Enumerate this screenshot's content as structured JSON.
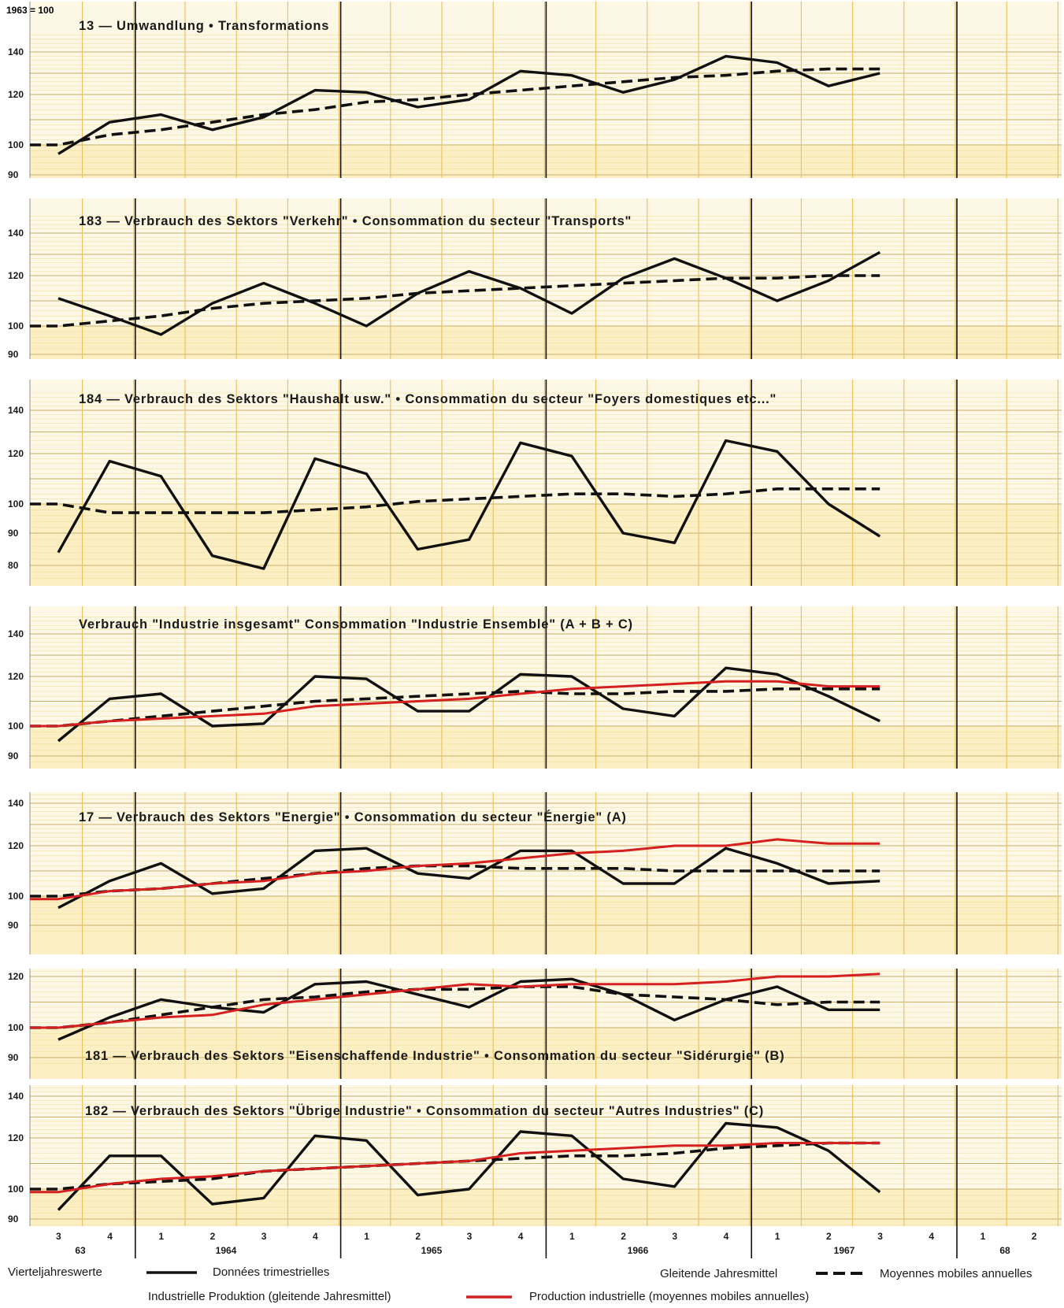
{
  "header": {
    "base_label": "1963 = 100"
  },
  "colors": {
    "background": "#fdf7e6",
    "grid_minor": "#efe2a0",
    "grid_major": "#c8b26a",
    "quarterly": "#111111",
    "moving_avg": "#111111",
    "production": "#d42020"
  },
  "chart_data": [
    {
      "type": "line",
      "title": "13 — Umwandlung • Transformations",
      "y_ticks": [
        90,
        100,
        120,
        140
      ],
      "ylim": [
        88,
        148
      ],
      "series": [
        {
          "name": "Données trimestrielles",
          "style": "solid",
          "values": [
            97,
            109,
            112,
            106,
            111,
            122,
            121,
            115,
            118,
            131,
            129,
            121,
            127,
            138,
            135,
            124,
            130
          ]
        },
        {
          "name": "Moyennes mobiles annuelles",
          "style": "dashed",
          "values": [
            100,
            104,
            106,
            109,
            112,
            114,
            117,
            118,
            120,
            122,
            124,
            126,
            128,
            129,
            131,
            132,
            132
          ]
        }
      ]
    },
    {
      "type": "line",
      "title": "183 — Verbrauch des Sektors \"Verkehr\" • Consommation du secteur \"Transports\"",
      "y_ticks": [
        90,
        100,
        120,
        140
      ],
      "ylim": [
        88,
        148
      ],
      "series": [
        {
          "name": "Données trimestrielles",
          "style": "solid",
          "values": [
            111,
            104,
            97,
            109,
            117,
            109,
            100,
            113,
            122,
            115,
            105,
            119,
            128,
            119,
            110,
            118,
            131
          ]
        },
        {
          "name": "Moyennes mobiles annuelles",
          "style": "dashed",
          "values": [
            100,
            102,
            104,
            107,
            109,
            110,
            111,
            113,
            114,
            115,
            116,
            117,
            118,
            119,
            119,
            120,
            120
          ]
        }
      ]
    },
    {
      "type": "line",
      "title": "184 — Verbrauch des Sektors \"Haushalt usw.\" • Consommation du secteur \"Foyers domestiques etc...\"",
      "y_ticks": [
        80,
        90,
        100,
        120,
        140
      ],
      "ylim": [
        75,
        148
      ],
      "series": [
        {
          "name": "Données trimestrielles",
          "style": "solid",
          "values": [
            84,
            117,
            111,
            83,
            79,
            118,
            112,
            85,
            88,
            125,
            119,
            90,
            87,
            126,
            121,
            100,
            89
          ]
        },
        {
          "name": "Moyennes mobiles annuelles",
          "style": "dashed",
          "values": [
            100,
            97,
            97,
            97,
            97,
            98,
            99,
            101,
            102,
            103,
            104,
            104,
            103,
            104,
            106,
            106,
            106
          ]
        }
      ]
    },
    {
      "type": "line",
      "title": "Verbrauch \"Industrie insgesamt\" Consommation \"Industrie Ensemble\" (A + B + C)",
      "y_ticks": [
        90,
        100,
        120,
        140
      ],
      "ylim": [
        88,
        148
      ],
      "series": [
        {
          "name": "Données trimestrielles",
          "style": "solid",
          "values": [
            95,
            111,
            113,
            100,
            101,
            120,
            119,
            106,
            106,
            121,
            120,
            107,
            104,
            124,
            121,
            112,
            102
          ]
        },
        {
          "name": "Moyennes mobiles annuelles",
          "style": "dashed",
          "values": [
            100,
            102,
            104,
            106,
            108,
            110,
            111,
            112,
            113,
            114,
            113,
            113,
            114,
            114,
            115,
            115,
            115
          ]
        },
        {
          "name": "Production industrielle (moyennes mobiles annuelles)",
          "style": "solid-red",
          "values": [
            100,
            102,
            103,
            104,
            105,
            108,
            109,
            110,
            111,
            113,
            115,
            116,
            117,
            118,
            118,
            116,
            116
          ]
        }
      ]
    },
    {
      "type": "line",
      "title": "17 — Verbrauch des Sektors \"Energie\" • Consommation du secteur \"Énergie\" (A)",
      "y_ticks": [
        90,
        100,
        120,
        140
      ],
      "ylim": [
        88,
        148
      ],
      "series": [
        {
          "name": "Données trimestrielles",
          "style": "solid",
          "values": [
            96,
            106,
            113,
            101,
            103,
            118,
            119,
            109,
            107,
            118,
            118,
            105,
            105,
            119,
            113,
            105,
            106
          ]
        },
        {
          "name": "Moyennes mobiles annuelles",
          "style": "dashed",
          "values": [
            100,
            102,
            103,
            105,
            107,
            109,
            111,
            112,
            112,
            111,
            111,
            111,
            110,
            110,
            110,
            110,
            110
          ]
        },
        {
          "name": "Production industrielle (moyennes mobiles annuelles)",
          "style": "solid-red",
          "values": [
            99,
            102,
            103,
            105,
            106,
            109,
            110,
            112,
            113,
            115,
            117,
            118,
            120,
            120,
            123,
            121,
            121
          ]
        }
      ]
    },
    {
      "type": "line",
      "title": "181 — Verbrauch des Sektors \"Eisenschaffende Industrie\" • Consommation du secteur \"Sidérurgie\" (B)",
      "y_ticks": [
        90,
        100,
        120
      ],
      "ylim": [
        88,
        124
      ],
      "series": [
        {
          "name": "Données trimestrielles",
          "style": "solid",
          "values": [
            96,
            104,
            111,
            108,
            106,
            117,
            118,
            113,
            108,
            118,
            119,
            113,
            103,
            111,
            116,
            107,
            107
          ]
        },
        {
          "name": "Moyennes mobiles annuelles",
          "style": "dashed",
          "values": [
            100,
            102,
            105,
            108,
            111,
            112,
            114,
            115,
            115,
            116,
            116,
            113,
            112,
            111,
            109,
            110,
            110
          ]
        },
        {
          "name": "Production industrielle (moyennes mobiles annuelles)",
          "style": "solid-red",
          "values": [
            100,
            102,
            104,
            105,
            109,
            111,
            113,
            115,
            117,
            116,
            117,
            117,
            117,
            118,
            120,
            120,
            121
          ]
        }
      ]
    },
    {
      "type": "line",
      "title": "182 — Verbrauch des Sektors \"Übrige Industrie\" • Consommation du secteur \"Autres Industries\" (C)",
      "y_ticks": [
        90,
        100,
        120,
        140
      ],
      "ylim": [
        88,
        148
      ],
      "series": [
        {
          "name": "Données trimestrielles",
          "style": "solid",
          "values": [
            93,
            113,
            113,
            95,
            97,
            121,
            119,
            98,
            100,
            123,
            121,
            104,
            101,
            127,
            125,
            115,
            99
          ]
        },
        {
          "name": "Moyennes mobiles annuelles",
          "style": "dashed",
          "values": [
            100,
            102,
            103,
            104,
            107,
            108,
            109,
            110,
            111,
            112,
            113,
            113,
            114,
            116,
            117,
            118,
            118
          ]
        },
        {
          "name": "Production industrielle (moyennes mobiles annuelles)",
          "style": "solid-red",
          "values": [
            99,
            102,
            104,
            105,
            107,
            108,
            109,
            110,
            111,
            114,
            115,
            116,
            117,
            117,
            118,
            118,
            118
          ]
        }
      ]
    }
  ],
  "x_axis": {
    "quarters": [
      "3",
      "4",
      "1",
      "2",
      "3",
      "4",
      "1",
      "2",
      "3",
      "4",
      "1",
      "2",
      "3",
      "4",
      "1",
      "2",
      "3",
      "4",
      "1",
      "2"
    ],
    "years": [
      "63",
      "1964",
      "1965",
      "1966",
      "1967",
      "68"
    ]
  },
  "legend": {
    "row1_left_de": "Vierteljahreswerte",
    "row1_left_fr": "Données trimestrielles",
    "row1_right_de": "Gleitende Jahresmittel",
    "row1_right_fr": "Moyennes mobiles annuelles",
    "row2_de": "Industrielle Produktion (gleitende Jahresmittel)",
    "row2_fr": "Production industrielle (moyennes mobiles annuelles)"
  }
}
